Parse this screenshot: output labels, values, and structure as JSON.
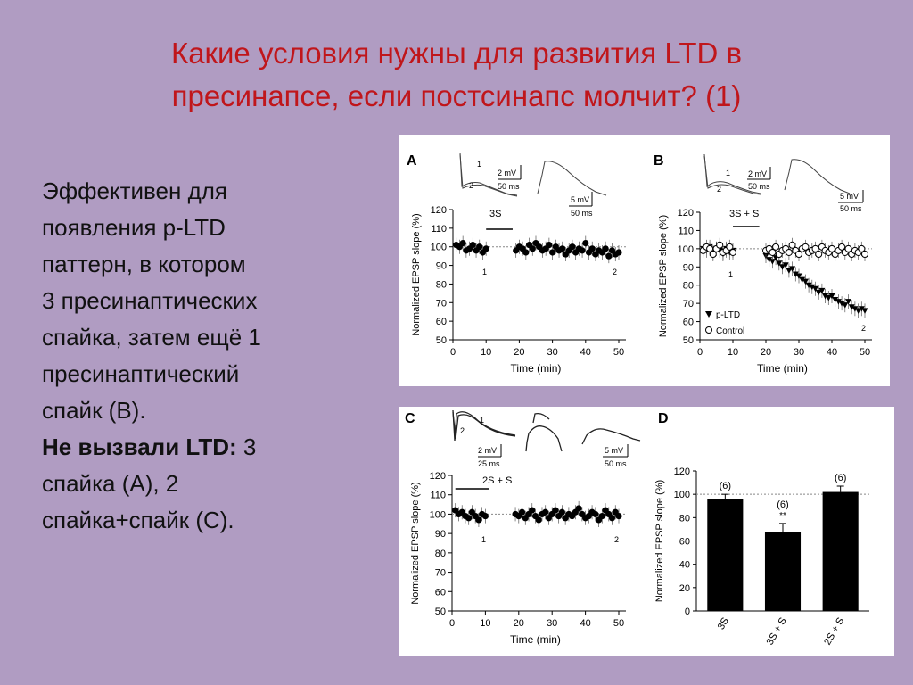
{
  "slide": {
    "title_line1": "Какие условия нужны для развития LTD в",
    "title_line2": "пресинапсе, если постсинапс молчит? (1)",
    "body": {
      "line1": "Эффективен для",
      "line2": "появления p-LTD",
      "line3": "паттерн, в котором",
      "line4": "3 пресинаптических",
      "line5": "спайка, затем ещё 1",
      "line6": "пресинаптический",
      "line7": "спайк (В).",
      "bold_label": "Не вызвали LTD:",
      "line8_rest": " 3",
      "line9": "спайка (А), 2",
      "line10": "спайка+спайк (С)."
    }
  },
  "figure": {
    "colors": {
      "background": "#b09cc2",
      "title": "#c0161b"
    },
    "panels": {
      "A": {
        "letter": "A",
        "scale1_mv": "2 mV",
        "scale1_ms": "50 ms",
        "scale2_mv": "5 mV",
        "scale2_ms": "50 ms",
        "trace1": "1",
        "trace2": "2",
        "protocol": "3S",
        "mark1": "1",
        "mark2": "2"
      },
      "B": {
        "letter": "B",
        "scale1_mv": "2 mV",
        "scale1_ms": "50 ms",
        "scale2_mv": "5 mV",
        "scale2_ms": "50 ms",
        "trace1": "1",
        "trace2": "2",
        "protocol": "3S + S",
        "mark1": "1",
        "mark2": "2",
        "legend1": "p-LTD",
        "legend2": "Control"
      },
      "C": {
        "letter": "C",
        "scale1_mv": "2 mV",
        "scale1_ms": "25 ms",
        "scale2_mv": "5 mV",
        "scale2_ms": "50 ms",
        "trace1": "1",
        "trace2": "2",
        "protocol": "2S + S",
        "mark1": "1",
        "mark2": "2"
      },
      "D": {
        "letter": "D",
        "n1": "(6)",
        "n2": "(6)",
        "n3": "(6)",
        "sig": "**"
      }
    },
    "ylabel": "Normalized EPSP slope (%)",
    "xlabel": "Time (min)"
  },
  "chart_data": [
    {
      "type": "scatter",
      "panel": "A",
      "xlabel": "Time (min)",
      "ylabel": "Normalized EPSP slope (%)",
      "xlim": [
        0,
        50
      ],
      "ylim": [
        50,
        120
      ],
      "xticks": [
        0,
        10,
        20,
        30,
        40,
        50
      ],
      "yticks": [
        50,
        60,
        70,
        80,
        90,
        100,
        110,
        120
      ],
      "baseline": 100,
      "series": [
        {
          "x": [
            1,
            2,
            3,
            4,
            5,
            6,
            7,
            8,
            9,
            10,
            19,
            20,
            21,
            22,
            23,
            24,
            25,
            26,
            27,
            28,
            29,
            30,
            31,
            32,
            33,
            34,
            35,
            36,
            37,
            38,
            39,
            40,
            41,
            42,
            43,
            44,
            45,
            46,
            47,
            48,
            49,
            50
          ],
          "y": [
            101,
            100,
            102,
            98,
            99,
            101,
            98,
            100,
            97,
            99,
            98,
            100,
            99,
            97,
            101,
            99,
            102,
            100,
            98,
            99,
            101,
            97,
            100,
            98,
            99,
            96,
            98,
            100,
            97,
            99,
            98,
            102,
            97,
            99,
            96,
            98,
            97,
            99,
            95,
            98,
            96,
            97
          ]
        }
      ]
    },
    {
      "type": "scatter",
      "panel": "B",
      "xlabel": "Time (min)",
      "ylabel": "Normalized EPSP slope (%)",
      "xlim": [
        0,
        50
      ],
      "ylim": [
        50,
        120
      ],
      "xticks": [
        0,
        10,
        20,
        30,
        40,
        50
      ],
      "yticks": [
        50,
        60,
        70,
        80,
        90,
        100,
        110,
        120
      ],
      "baseline": 100,
      "series": [
        {
          "name": "p-LTD",
          "x": [
            1,
            2,
            3,
            4,
            5,
            6,
            7,
            8,
            9,
            10,
            20,
            21,
            22,
            23,
            24,
            25,
            26,
            27,
            28,
            29,
            30,
            31,
            32,
            33,
            34,
            35,
            36,
            37,
            38,
            39,
            40,
            41,
            42,
            43,
            44,
            45,
            46,
            47,
            48,
            49,
            50
          ],
          "y": [
            100,
            99,
            101,
            98,
            100,
            99,
            97,
            100,
            98,
            99,
            96,
            94,
            93,
            95,
            92,
            90,
            91,
            88,
            89,
            86,
            85,
            83,
            82,
            80,
            79,
            78,
            76,
            77,
            74,
            73,
            74,
            72,
            71,
            70,
            69,
            71,
            68,
            67,
            66,
            67,
            66
          ]
        },
        {
          "name": "Control",
          "x": [
            1,
            2,
            3,
            4,
            5,
            6,
            7,
            8,
            9,
            10,
            20,
            21,
            22,
            23,
            24,
            25,
            26,
            27,
            28,
            29,
            30,
            31,
            32,
            33,
            34,
            35,
            36,
            37,
            38,
            39,
            40,
            41,
            42,
            43,
            44,
            45,
            46,
            47,
            48,
            49,
            50
          ],
          "y": [
            99,
            101,
            100,
            97,
            100,
            102,
            98,
            99,
            101,
            98,
            99,
            100,
            98,
            101,
            97,
            99,
            100,
            98,
            102,
            99,
            97,
            100,
            101,
            98,
            99,
            100,
            97,
            101,
            99,
            98,
            100,
            97,
            99,
            101,
            98,
            100,
            97,
            99,
            98,
            100,
            97
          ]
        }
      ]
    },
    {
      "type": "scatter",
      "panel": "C",
      "xlabel": "Time (min)",
      "ylabel": "Normalized EPSP slope (%)",
      "xlim": [
        0,
        50
      ],
      "ylim": [
        50,
        120
      ],
      "xticks": [
        0,
        10,
        20,
        30,
        40,
        50
      ],
      "yticks": [
        50,
        60,
        70,
        80,
        90,
        100,
        110,
        120
      ],
      "baseline": 100,
      "series": [
        {
          "x": [
            1,
            2,
            3,
            4,
            5,
            6,
            7,
            8,
            9,
            10,
            19,
            20,
            21,
            22,
            23,
            24,
            25,
            26,
            27,
            28,
            29,
            30,
            31,
            32,
            33,
            34,
            35,
            36,
            37,
            38,
            39,
            40,
            41,
            42,
            43,
            44,
            45,
            46,
            47,
            48,
            49,
            50
          ],
          "y": [
            102,
            100,
            101,
            99,
            98,
            101,
            99,
            97,
            100,
            99,
            100,
            99,
            101,
            98,
            100,
            102,
            99,
            97,
            100,
            101,
            98,
            100,
            102,
            99,
            101,
            98,
            100,
            99,
            101,
            103,
            100,
            98,
            99,
            101,
            100,
            97,
            99,
            102,
            100,
            98,
            101,
            99
          ]
        }
      ]
    },
    {
      "type": "bar",
      "panel": "D",
      "ylabel": "Normalized EPSP slope (%)",
      "ylim": [
        0,
        120
      ],
      "yticks": [
        0,
        20,
        40,
        60,
        80,
        100,
        120
      ],
      "baseline": 100,
      "categories": [
        "3S",
        "3S + S",
        "2S + S"
      ],
      "values": [
        96,
        68,
        102
      ],
      "errors": [
        4,
        7,
        5
      ]
    }
  ]
}
